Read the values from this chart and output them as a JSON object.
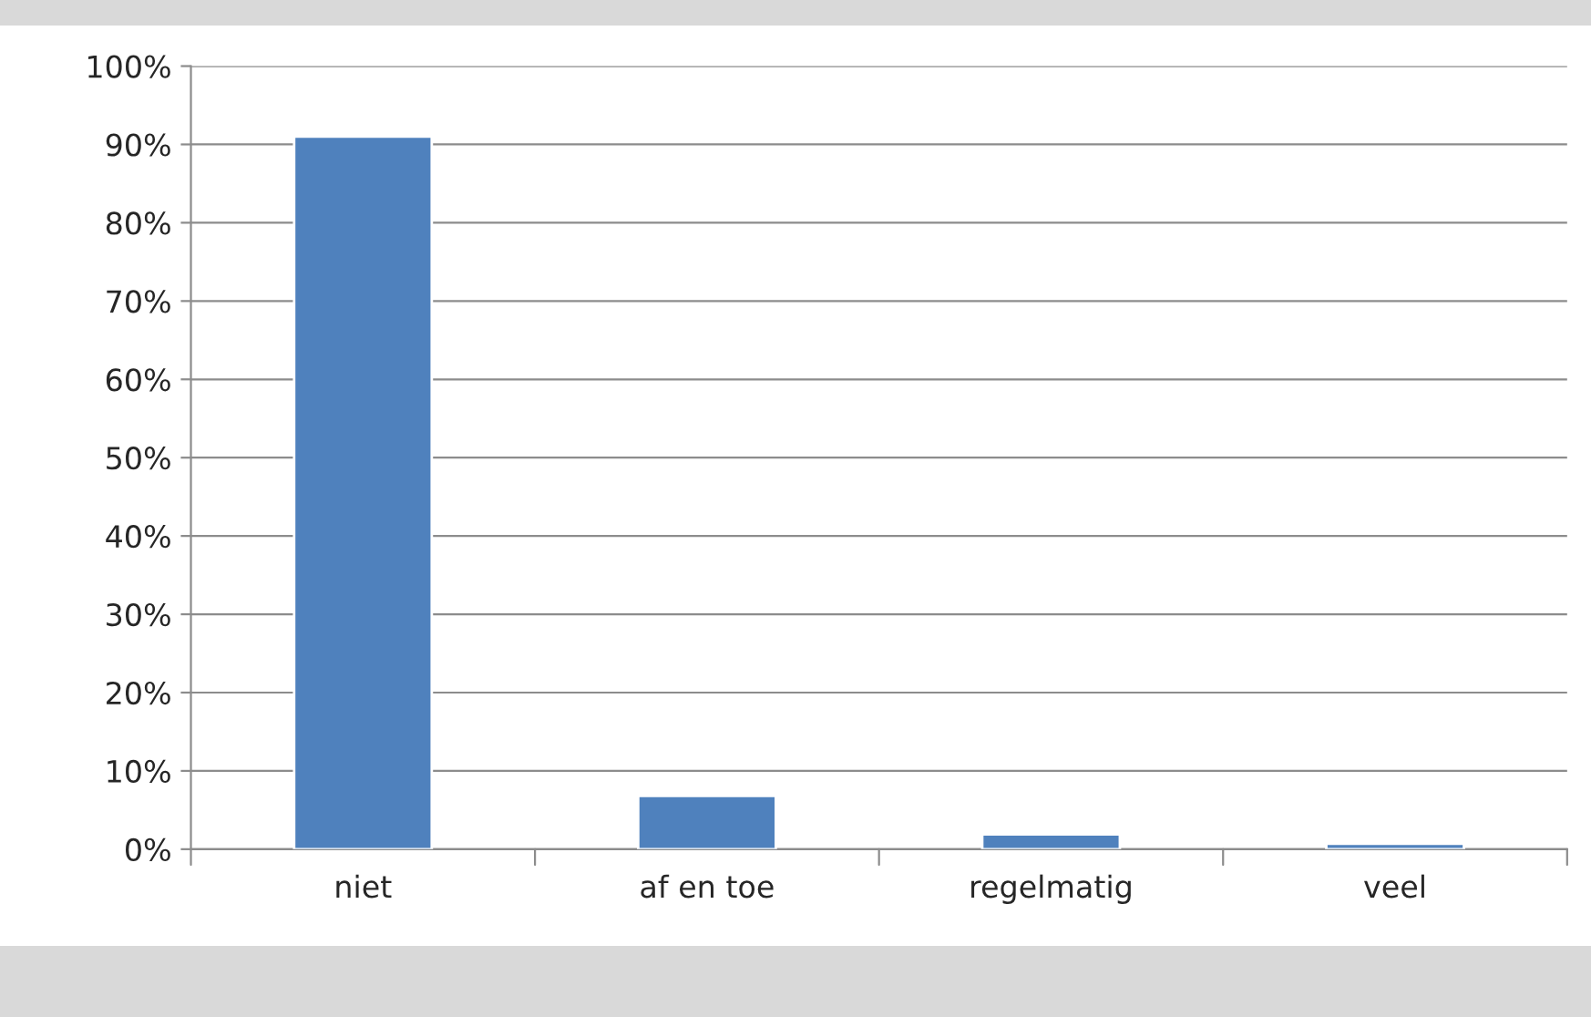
{
  "chart_data": {
    "type": "bar",
    "categories": [
      "niet",
      "af en toe",
      "regelmatig",
      "veel"
    ],
    "values": [
      91,
      6.8,
      1.9,
      0.7
    ],
    "color": "#4f81bd",
    "ylim": [
      0,
      100
    ],
    "yticks": [
      {
        "value": 0,
        "label": "0%"
      },
      {
        "value": 10,
        "label": "10%"
      },
      {
        "value": 20,
        "label": "20%"
      },
      {
        "value": 30,
        "label": "30%"
      },
      {
        "value": 40,
        "label": "40%"
      },
      {
        "value": 50,
        "label": "50%"
      },
      {
        "value": 60,
        "label": "60%"
      },
      {
        "value": 70,
        "label": "70%"
      },
      {
        "value": 80,
        "label": "80%"
      },
      {
        "value": 90,
        "label": "90%"
      },
      {
        "value": 100,
        "label": "100%"
      }
    ],
    "grid": "y"
  }
}
